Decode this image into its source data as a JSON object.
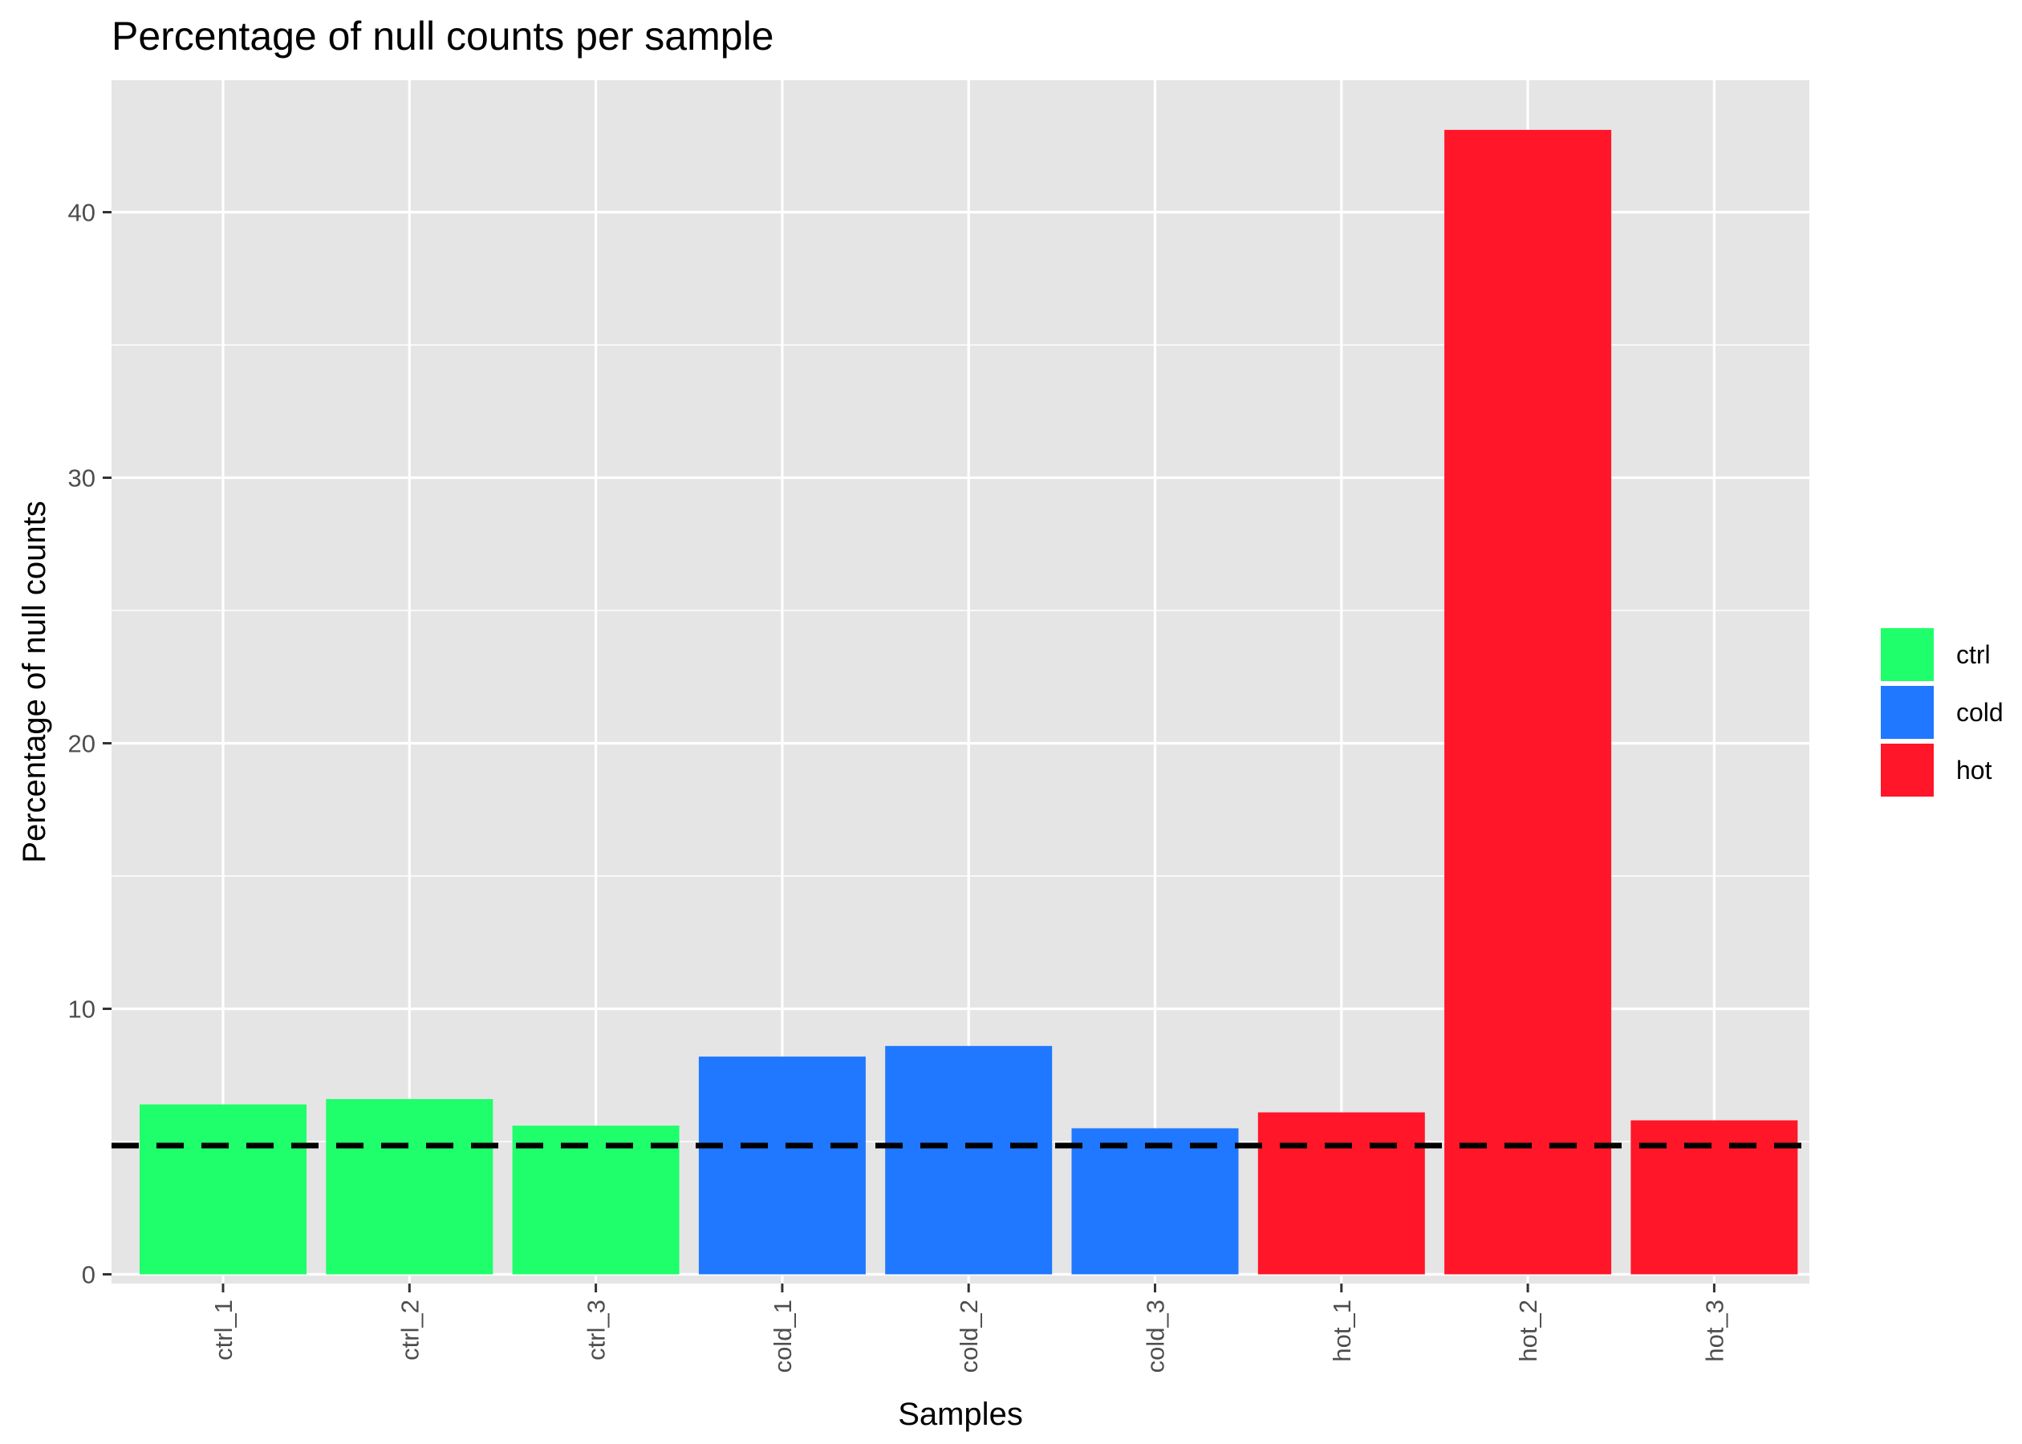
{
  "chart_data": {
    "type": "bar",
    "title": "Percentage of null counts per sample",
    "xlabel": "Samples",
    "ylabel": "Percentage of null counts",
    "categories": [
      "ctrl_1",
      "ctrl_2",
      "ctrl_3",
      "cold_1",
      "cold_2",
      "cold_3",
      "hot_1",
      "hot_2",
      "hot_3"
    ],
    "values": [
      6.4,
      6.6,
      5.6,
      8.2,
      8.6,
      5.5,
      6.1,
      43.1,
      5.8
    ],
    "groups": [
      "ctrl",
      "ctrl",
      "ctrl",
      "cold",
      "cold",
      "cold",
      "hot",
      "hot",
      "hot"
    ],
    "ylim": [
      0,
      45
    ],
    "y_ticks": [
      0,
      10,
      20,
      30,
      40
    ],
    "grid": true,
    "reference_line": {
      "y": 4.85,
      "style": "dashed",
      "color": "#000000"
    },
    "legend": {
      "position": "right",
      "entries": [
        {
          "label": "ctrl",
          "color": "#1FFF6B"
        },
        {
          "label": "cold",
          "color": "#1F78FF"
        },
        {
          "label": "hot",
          "color": "#FF1628"
        }
      ]
    },
    "colors": {
      "panel_background": "#E5E5E5",
      "grid_line": "#FFFFFF",
      "ctrl": "#1FFF6B",
      "cold": "#1F78FF",
      "hot": "#FF1628"
    }
  }
}
